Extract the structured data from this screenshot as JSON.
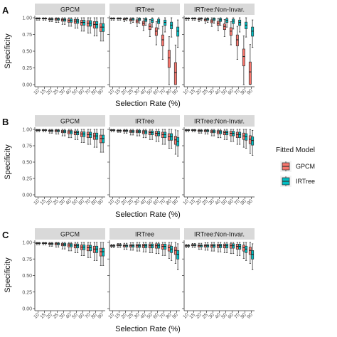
{
  "chart_data": {
    "type": "box",
    "x_categories": [
      "10",
      "15",
      "20",
      "25",
      "30",
      "40",
      "50",
      "60",
      "70",
      "80",
      "90"
    ],
    "facets": [
      "GPCM",
      "IRTree",
      "IRTree:Non-Invar."
    ],
    "xlabel": "Selection Rate (%)",
    "ylabel": "Specificity",
    "ylim": [
      0,
      1
    ],
    "yticks": [
      "0.00",
      "0.25",
      "0.50",
      "0.75",
      "1.00"
    ],
    "legend": {
      "title": "Fitted Model",
      "position": "right",
      "entries": [
        {
          "name": "GPCM",
          "color": "#F8766D"
        },
        {
          "name": "IRTree",
          "color": "#00BFC4"
        }
      ]
    },
    "panels": [
      {
        "label": "A",
        "facets": [
          {
            "name": "GPCM",
            "GPCM_median": [
              0.99,
              0.99,
              0.98,
              0.98,
              0.97,
              0.96,
              0.95,
              0.93,
              0.92,
              0.9,
              0.86
            ],
            "IRTree_median": [
              0.99,
              0.99,
              0.98,
              0.98,
              0.97,
              0.96,
              0.95,
              0.93,
              0.92,
              0.9,
              0.86
            ]
          },
          {
            "name": "IRTree",
            "GPCM_median": [
              0.99,
              0.99,
              0.98,
              0.97,
              0.95,
              0.92,
              0.87,
              0.8,
              0.67,
              0.4,
              0.18
            ],
            "IRTree_median": [
              0.99,
              0.99,
              0.99,
              0.98,
              0.98,
              0.97,
              0.96,
              0.95,
              0.93,
              0.89,
              0.8
            ]
          },
          {
            "name": "IRTree:Non-Invar.",
            "GPCM_median": [
              0.99,
              0.99,
              0.98,
              0.97,
              0.95,
              0.92,
              0.87,
              0.8,
              0.67,
              0.42,
              0.19
            ],
            "IRTree_median": [
              0.99,
              0.99,
              0.99,
              0.98,
              0.98,
              0.97,
              0.96,
              0.95,
              0.93,
              0.89,
              0.8
            ]
          }
        ]
      },
      {
        "label": "B",
        "facets": [
          {
            "name": "GPCM",
            "GPCM_median": [
              0.99,
              0.99,
              0.98,
              0.98,
              0.97,
              0.96,
              0.95,
              0.93,
              0.92,
              0.9,
              0.86
            ],
            "IRTree_median": [
              0.99,
              0.99,
              0.98,
              0.98,
              0.97,
              0.96,
              0.95,
              0.93,
              0.92,
              0.9,
              0.86
            ]
          },
          {
            "name": "IRTree",
            "GPCM_median": [
              0.99,
              0.98,
              0.98,
              0.97,
              0.97,
              0.96,
              0.95,
              0.94,
              0.92,
              0.89,
              0.84
            ],
            "IRTree_median": [
              0.99,
              0.98,
              0.98,
              0.97,
              0.97,
              0.96,
              0.95,
              0.94,
              0.92,
              0.89,
              0.82
            ]
          },
          {
            "name": "IRTree:Non-Invar.",
            "GPCM_median": [
              0.99,
              0.99,
              0.98,
              0.98,
              0.97,
              0.96,
              0.95,
              0.94,
              0.92,
              0.9,
              0.85
            ],
            "IRTree_median": [
              0.99,
              0.99,
              0.98,
              0.98,
              0.97,
              0.96,
              0.95,
              0.94,
              0.92,
              0.89,
              0.83
            ]
          }
        ]
      },
      {
        "label": "C",
        "facets": [
          {
            "name": "GPCM",
            "GPCM_median": [
              0.99,
              0.99,
              0.98,
              0.98,
              0.97,
              0.96,
              0.95,
              0.93,
              0.92,
              0.9,
              0.86
            ],
            "IRTree_median": [
              0.99,
              0.99,
              0.98,
              0.98,
              0.97,
              0.96,
              0.95,
              0.93,
              0.92,
              0.9,
              0.86
            ]
          },
          {
            "name": "IRTree",
            "GPCM_median": [
              0.95,
              0.96,
              0.95,
              0.95,
              0.95,
              0.95,
              0.95,
              0.95,
              0.94,
              0.92,
              0.88
            ],
            "IRTree_median": [
              0.95,
              0.96,
              0.95,
              0.95,
              0.95,
              0.95,
              0.95,
              0.95,
              0.94,
              0.9,
              0.82
            ]
          },
          {
            "name": "IRTree:Non-Invar.",
            "GPCM_median": [
              0.95,
              0.96,
              0.95,
              0.95,
              0.95,
              0.95,
              0.95,
              0.95,
              0.94,
              0.92,
              0.88
            ],
            "IRTree_median": [
              0.95,
              0.96,
              0.95,
              0.95,
              0.95,
              0.95,
              0.95,
              0.95,
              0.94,
              0.9,
              0.82
            ]
          }
        ]
      }
    ]
  }
}
